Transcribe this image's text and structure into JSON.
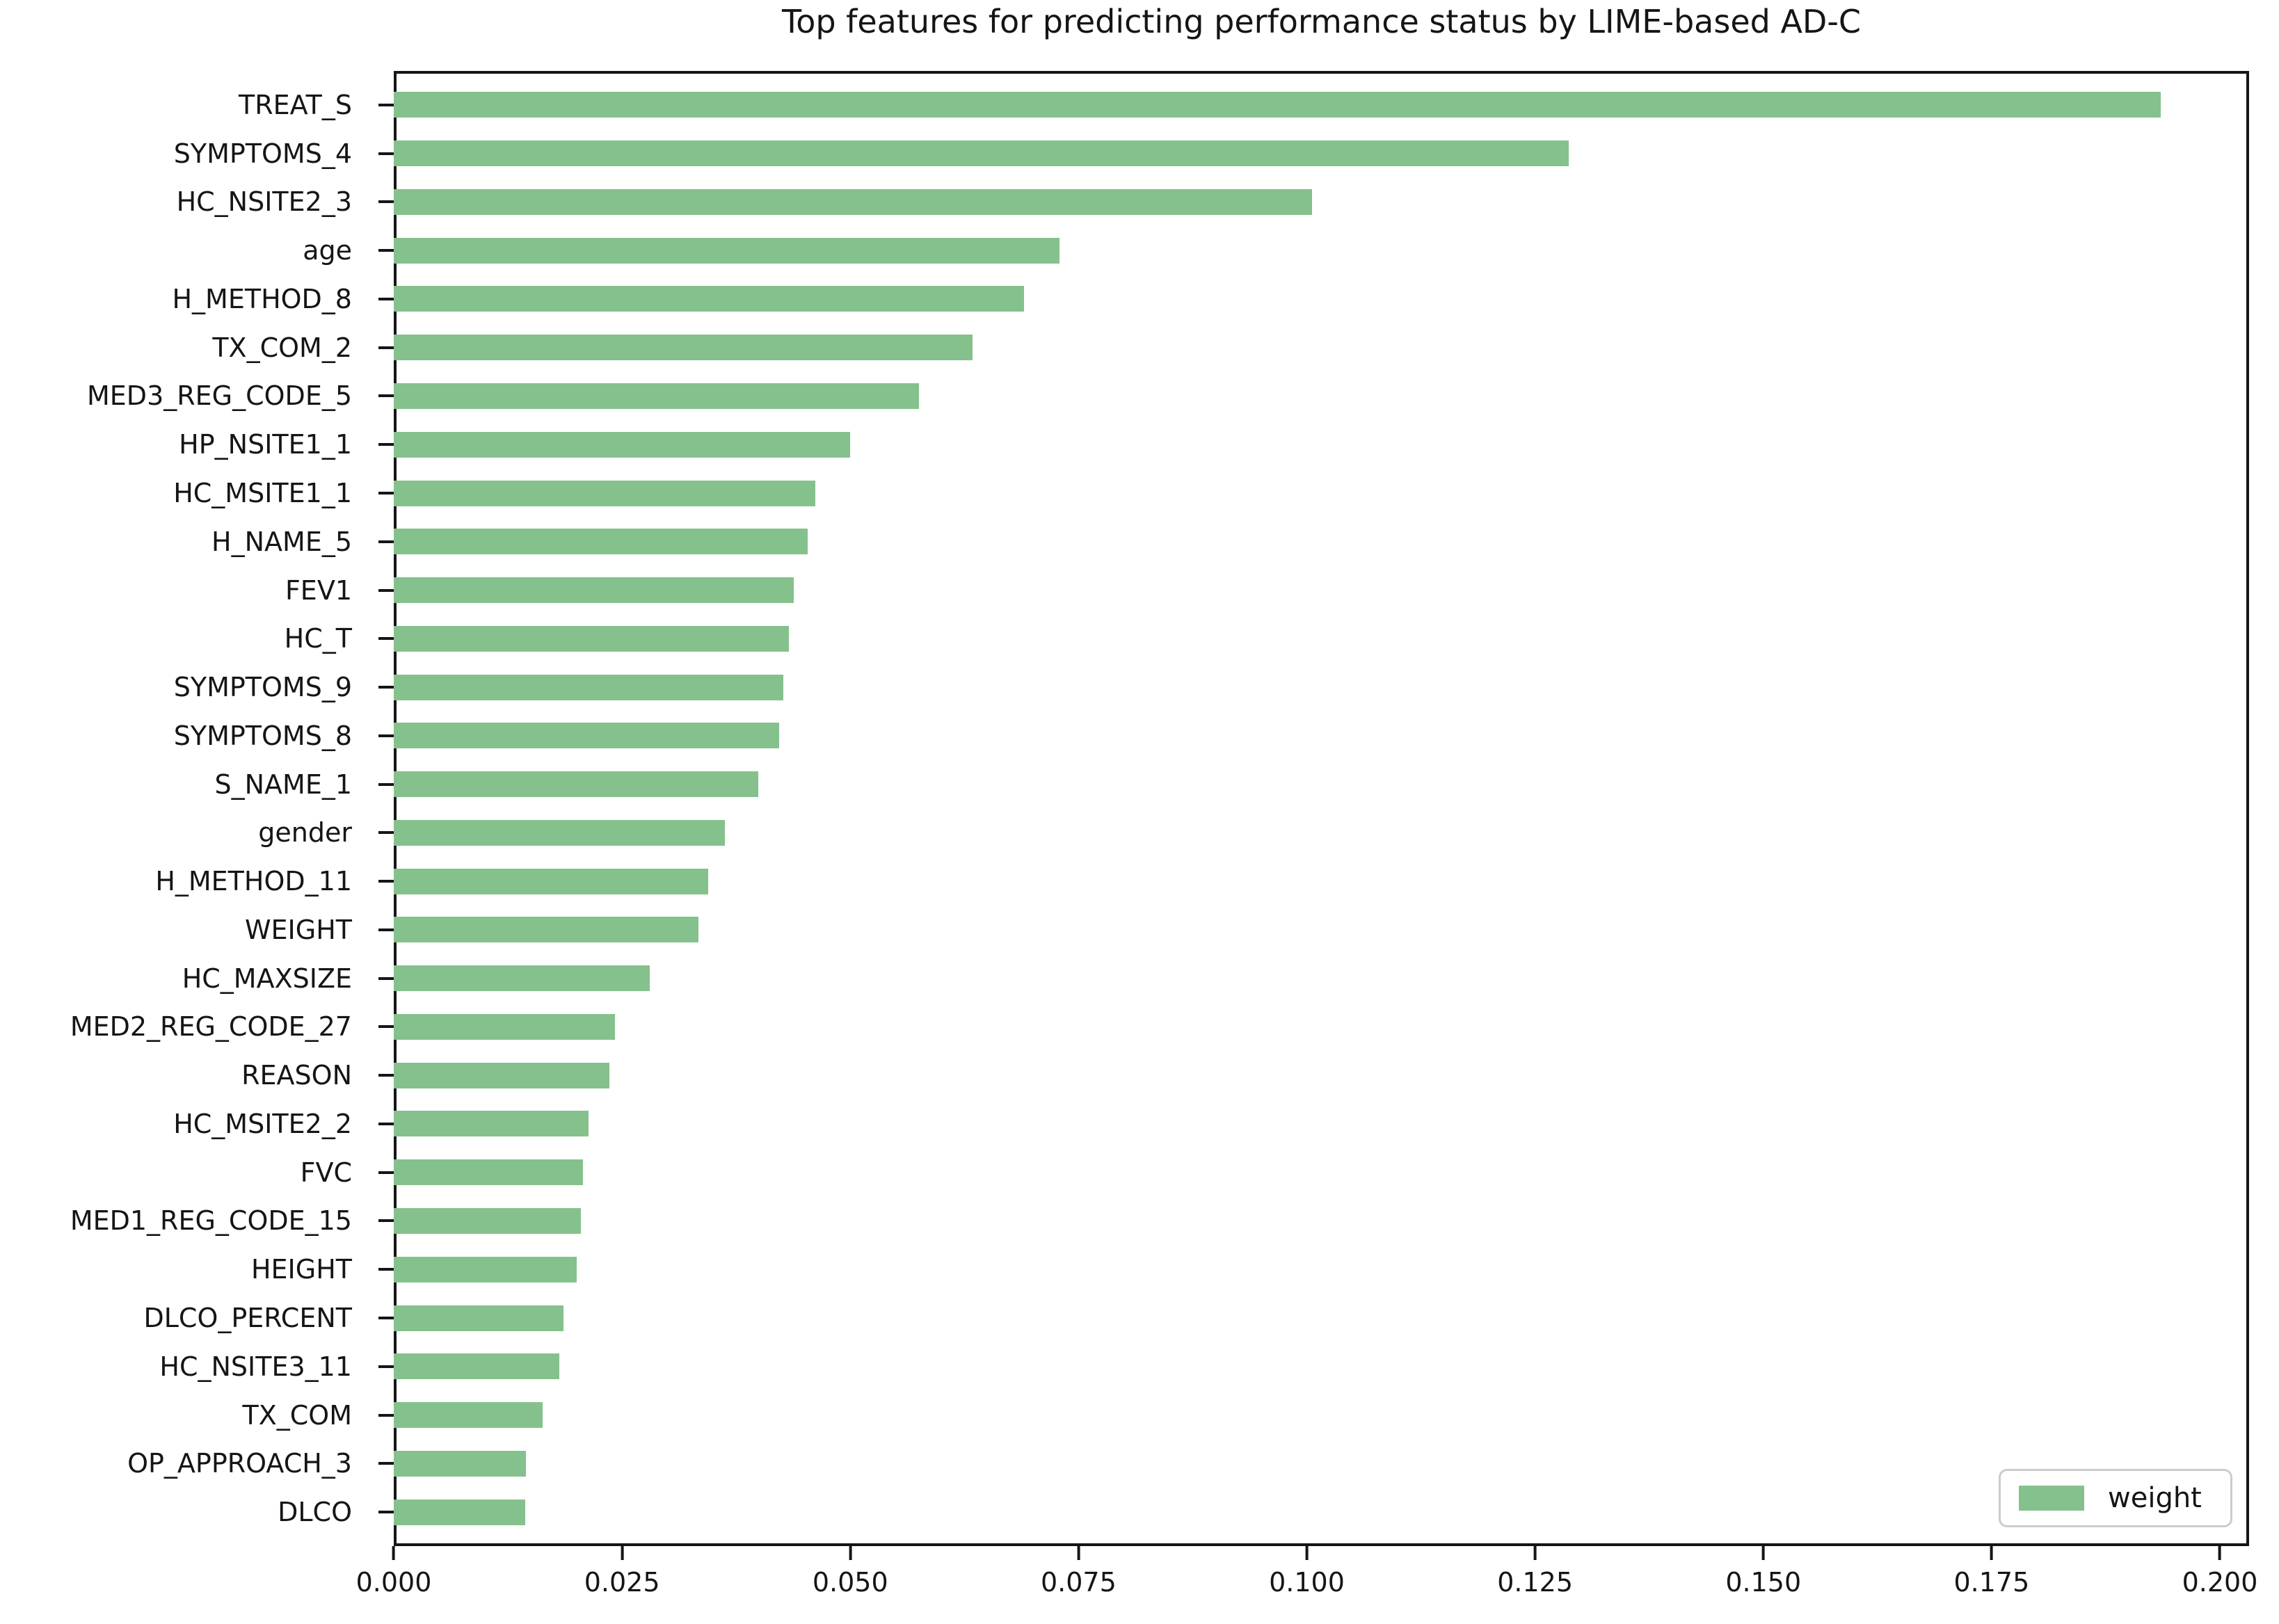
{
  "chart_data": {
    "type": "bar",
    "orientation": "horizontal",
    "title": "Top features for predicting performance status by LIME-based AD-C",
    "series_name": "weight",
    "legend_label": "weight",
    "legend_position": "lower right",
    "bar_color": "#85c18c",
    "grid": false,
    "xlim": [
      0,
      0.2032
    ],
    "x_ticks": [
      0.0,
      0.025,
      0.05,
      0.075,
      0.1,
      0.125,
      0.15,
      0.175,
      0.2
    ],
    "x_tick_labels": [
      "0.000",
      "0.025",
      "0.050",
      "0.075",
      "0.100",
      "0.125",
      "0.150",
      "0.175",
      "0.200"
    ],
    "categories": [
      "TREAT_S",
      "SYMPTOMS_4",
      "HC_NSITE2_3",
      "age",
      "H_METHOD_8",
      "TX_COM_2",
      "MED3_REG_CODE_5",
      "HP_NSITE1_1",
      "HC_MSITE1_1",
      "H_NAME_5",
      "FEV1",
      "HC_T",
      "SYMPTOMS_9",
      "SYMPTOMS_8",
      "S_NAME_1",
      "gender",
      "H_METHOD_11",
      "WEIGHT",
      "HC_MAXSIZE",
      "MED2_REG_CODE_27",
      "REASON",
      "HC_MSITE2_2",
      "FVC",
      "MED1_REG_CODE_15",
      "HEIGHT",
      "DLCO_PERCENT",
      "HC_NSITE3_11",
      "TX_COM",
      "OP_APPROACH_3",
      "DLCO"
    ],
    "values": [
      0.1935,
      0.1287,
      0.1006,
      0.0729,
      0.069,
      0.0634,
      0.0575,
      0.05,
      0.0462,
      0.0453,
      0.0438,
      0.0433,
      0.0427,
      0.0422,
      0.0399,
      0.0363,
      0.0344,
      0.0334,
      0.028,
      0.0242,
      0.0236,
      0.0213,
      0.0207,
      0.0205,
      0.02,
      0.0186,
      0.0181,
      0.0163,
      0.0145,
      0.0144
    ]
  }
}
